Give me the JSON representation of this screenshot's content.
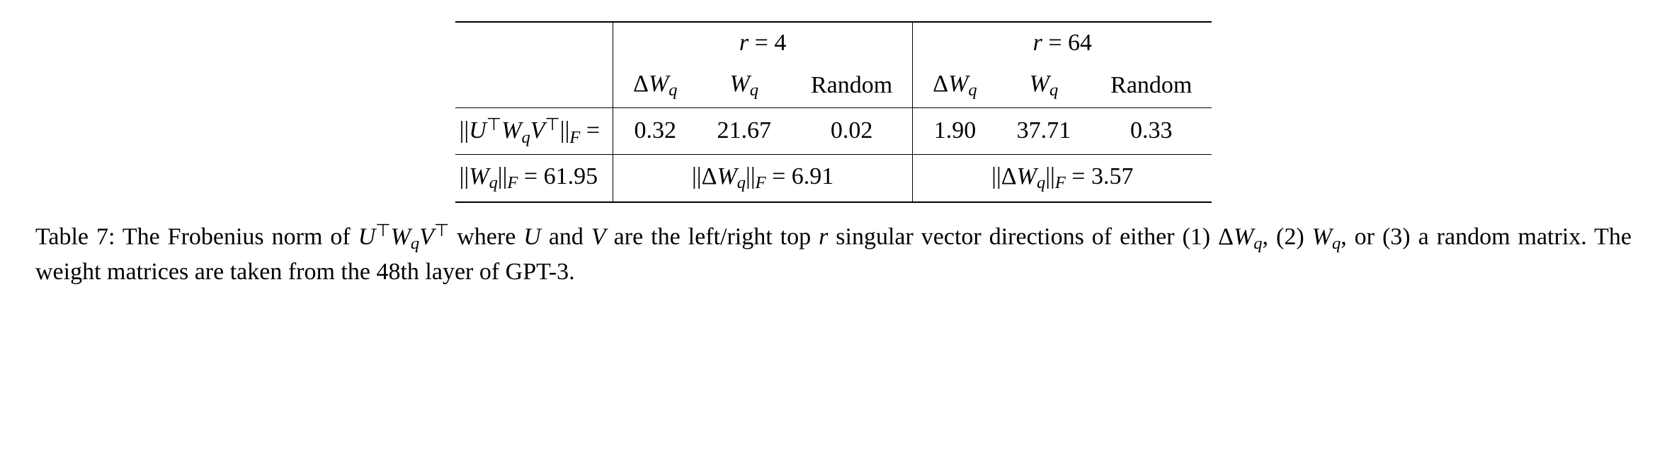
{
  "table": {
    "header": {
      "group1": "r = 4",
      "group2": "r = 64",
      "col_dWq": "ΔW",
      "col_Wq": "W",
      "col_random": "Random",
      "sub_q": "q"
    },
    "row1": {
      "label_prefix": "||",
      "label_U": "U",
      "label_T": "⊤",
      "label_W": "W",
      "label_q": "q",
      "label_V": "V",
      "label_suffix_F": "F",
      "eq": " =",
      "vals": {
        "r4_dWq": "0.32",
        "r4_Wq": "21.67",
        "r4_rand": "0.02",
        "r64_dWq": "1.90",
        "r64_Wq": "37.71",
        "r64_rand": "0.33"
      }
    },
    "row2": {
      "cell1_value": "61.95",
      "cell2_value": "6.91",
      "cell3_value": "3.57",
      "norm_W": "W",
      "norm_dW": "ΔW",
      "sub_q": "q",
      "sub_F": "F"
    }
  },
  "caption": {
    "lead": "Table 7:",
    "part1": "  The Frobenius norm of ",
    "U": "U",
    "T": "⊤",
    "W": "W",
    "q": "q",
    "V": "V",
    "part2": " where ",
    "part3": " and ",
    "part4": " are the left/right top ",
    "r": "r",
    "part5": " singular vector directions of either (1) Δ",
    "part6": ", (2) ",
    "part7": ", or (3) a random matrix.  The weight matrices are taken from the 48th layer of GPT-3."
  }
}
